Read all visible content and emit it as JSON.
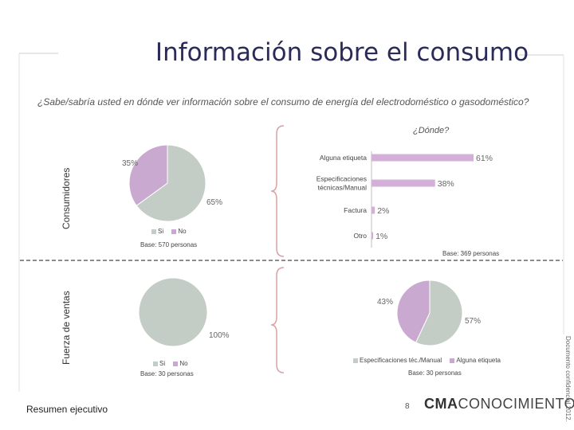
{
  "title": "Información sobre el consumo",
  "question": "¿Sabe/sabría usted en dónde ver información sobre el consumo de energía del electrodoméstico o gasodoméstico?",
  "rows": {
    "top_label": "Consumidores",
    "bottom_label": "Fuerza de ventas"
  },
  "colors": {
    "si": "#c3cdc5",
    "no": "#c9a9cf",
    "bar": "#d4b0d8",
    "frame": "#d9a2a2"
  },
  "chart_data": [
    {
      "id": "pie-consumidores",
      "type": "pie",
      "title": "",
      "categories": [
        "Si",
        "No"
      ],
      "values": [
        65,
        35
      ],
      "labels": [
        "65%",
        "35%"
      ],
      "legend": [
        "Si",
        "No"
      ],
      "base": "Base: 570 personas"
    },
    {
      "id": "bar-donde",
      "type": "bar",
      "orientation": "horizontal",
      "title": "¿Dónde?",
      "categories": [
        "Alguna etiqueta",
        "Especificaciones técnicas/Manual",
        "Factura",
        "Otro"
      ],
      "values": [
        61,
        38,
        2,
        1
      ],
      "labels": [
        "61%",
        "38%",
        "2%",
        "1%"
      ],
      "xlim": [
        0,
        61
      ],
      "base": "Base: 369 personas"
    },
    {
      "id": "pie-fuerza",
      "type": "pie",
      "title": "",
      "categories": [
        "Si",
        "No"
      ],
      "values": [
        100,
        0
      ],
      "labels": [
        "100%"
      ],
      "legend": [
        "Si",
        "No"
      ],
      "base": "Base: 30 personas"
    },
    {
      "id": "pie-fuerza-donde",
      "type": "pie",
      "title": "",
      "categories": [
        "Especificaciones téc./Manual",
        "Alguna etiqueta"
      ],
      "values": [
        57,
        43
      ],
      "labels": [
        "57%",
        "43%"
      ],
      "legend": [
        "Especificaciones téc./Manual",
        "Alguna etiqueta"
      ],
      "base": "Base: 30 personas"
    }
  ],
  "footer": {
    "left": "Resumen ejecutivo",
    "page": "8",
    "logo_a": "CMA",
    "logo_b": "CONOCIMIENTO",
    "confidential": "Documento confidencial 2012."
  }
}
